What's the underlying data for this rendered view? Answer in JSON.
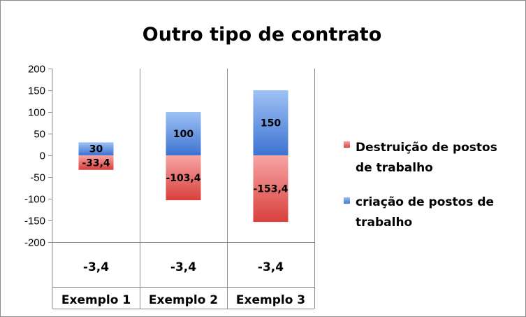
{
  "chart_data": {
    "type": "bar",
    "stacked": true,
    "title": "Outro tipo de contrato",
    "categories": [
      "Exemplo 1",
      "Exemplo 2",
      "Exemplo 3"
    ],
    "series": [
      {
        "name": "Destruição de postos de trabalho",
        "values": [
          -33.4,
          -103.4,
          -153.4
        ],
        "labels": [
          "-33,4",
          "-103,4",
          "-153,4"
        ],
        "color": "#e0524f"
      },
      {
        "name": "criação de postos de trabalho",
        "values": [
          30,
          100,
          150
        ],
        "labels": [
          "30",
          "100",
          "150"
        ],
        "color": "#4a7fd8"
      }
    ],
    "yticks": [
      "200",
      "150",
      "100",
      "50",
      "0",
      "-50",
      "-100",
      "-150",
      "-200"
    ],
    "ylim": [
      -200,
      200
    ],
    "xlabel": "",
    "ylabel": "",
    "table_row": [
      "-3,4",
      "-3,4",
      "-3,4"
    ],
    "grid": false,
    "legend_position": "right"
  }
}
